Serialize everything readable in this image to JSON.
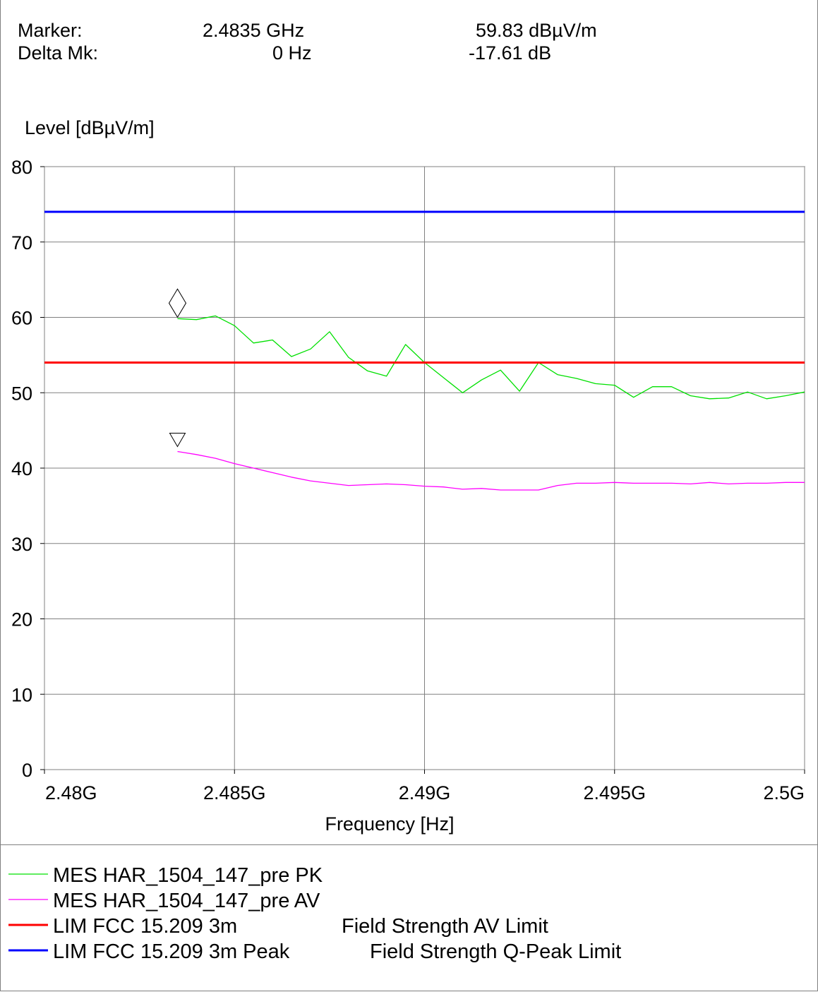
{
  "header": {
    "marker_label": "Marker:",
    "marker_freq": "2.4835 GHz",
    "marker_level": "59.83 dBµV/m",
    "delta_label": "Delta Mk:",
    "delta_freq": "0 Hz",
    "delta_level": "-17.61 dB"
  },
  "chart_data": {
    "type": "line",
    "ylabel": "Level [dBµV/m]",
    "xlabel": "Frequency [Hz]",
    "xlim": [
      2.48,
      2.5
    ],
    "ylim": [
      0,
      80
    ],
    "grid": true,
    "x_ticks": [
      {
        "value": 2.48,
        "label": "2.48G"
      },
      {
        "value": 2.485,
        "label": "2.485G"
      },
      {
        "value": 2.49,
        "label": "2.49G"
      },
      {
        "value": 2.495,
        "label": "2.495G"
      },
      {
        "value": 2.5,
        "label": "2.5G"
      }
    ],
    "y_ticks": [
      {
        "value": 0,
        "label": "0"
      },
      {
        "value": 10,
        "label": "10"
      },
      {
        "value": 20,
        "label": "20"
      },
      {
        "value": 30,
        "label": "30"
      },
      {
        "value": 40,
        "label": "40"
      },
      {
        "value": 50,
        "label": "50"
      },
      {
        "value": 60,
        "label": "60"
      },
      {
        "value": 70,
        "label": "70"
      },
      {
        "value": 80,
        "label": "80"
      }
    ],
    "series": [
      {
        "name": "MES  HAR_1504_147_pre PK",
        "color": "#00e000",
        "x": [
          2.4835,
          2.484,
          2.4845,
          2.485,
          2.4855,
          2.486,
          2.4865,
          2.487,
          2.4875,
          2.488,
          2.4885,
          2.489,
          2.4895,
          2.49,
          2.4905,
          2.491,
          2.4915,
          2.492,
          2.4925,
          2.493,
          2.4935,
          2.494,
          2.4945,
          2.495,
          2.4955,
          2.496,
          2.4965,
          2.497,
          2.4975,
          2.498,
          2.4985,
          2.499,
          2.4995,
          2.5
        ],
        "y": [
          59.83,
          59.7,
          60.2,
          58.9,
          56.6,
          57.0,
          54.8,
          55.8,
          58.1,
          54.7,
          52.9,
          52.2,
          56.4,
          54.0,
          52.0,
          50.0,
          51.7,
          53.0,
          50.2,
          54.0,
          52.4,
          51.9,
          51.2,
          51.0,
          49.4,
          50.8,
          50.8,
          49.6,
          49.2,
          49.3,
          50.1,
          49.2,
          49.6,
          50.1
        ]
      },
      {
        "name": "MES  HAR_1504_147_pre AV",
        "color": "#ff00ff",
        "x": [
          2.4835,
          2.484,
          2.4845,
          2.485,
          2.4855,
          2.486,
          2.4865,
          2.487,
          2.4875,
          2.488,
          2.4885,
          2.489,
          2.4895,
          2.49,
          2.4905,
          2.491,
          2.4915,
          2.492,
          2.4925,
          2.493,
          2.4935,
          2.494,
          2.4945,
          2.495,
          2.4955,
          2.496,
          2.4965,
          2.497,
          2.4975,
          2.498,
          2.4985,
          2.499,
          2.4995,
          2.5
        ],
        "y": [
          42.2,
          41.8,
          41.3,
          40.6,
          40.0,
          39.4,
          38.8,
          38.3,
          38.0,
          37.7,
          37.8,
          37.9,
          37.8,
          37.6,
          37.5,
          37.2,
          37.3,
          37.1,
          37.1,
          37.1,
          37.7,
          38.0,
          38.0,
          38.1,
          38.0,
          38.0,
          38.0,
          37.9,
          38.1,
          37.9,
          38.0,
          38.0,
          38.1,
          38.1
        ]
      },
      {
        "name": "LIM  FCC 15.209 3m",
        "suffix": "Field Strength AV Limit",
        "color": "#ff0000",
        "x": [
          2.48,
          2.5
        ],
        "y": [
          54,
          54
        ]
      },
      {
        "name": "LIM  FCC 15.209 3m Peak",
        "suffix": "Field Strength Q-Peak Limit",
        "color": "#0000ff",
        "x": [
          2.48,
          2.5
        ],
        "y": [
          74,
          74
        ]
      }
    ],
    "markers": [
      {
        "symbol": "diamond",
        "x": 2.4835,
        "y": 59.83
      },
      {
        "symbol": "triangle-down",
        "x": 2.4835,
        "y": 42.2
      }
    ]
  }
}
